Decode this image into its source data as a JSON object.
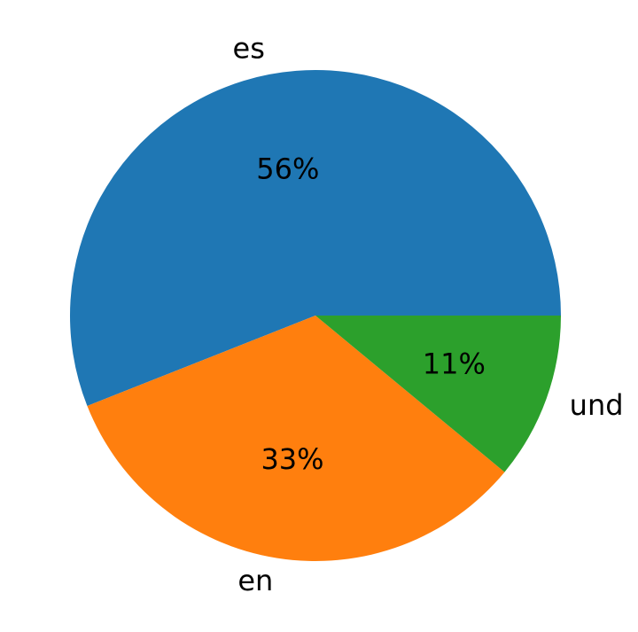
{
  "chart_data": {
    "type": "pie",
    "categories": [
      "es",
      "en",
      "und"
    ],
    "values": [
      56,
      33,
      11
    ],
    "value_labels": [
      "56%",
      "33%",
      "11%"
    ],
    "colors": [
      "#1f77b4",
      "#ff7f0e",
      "#2ca02c"
    ]
  }
}
